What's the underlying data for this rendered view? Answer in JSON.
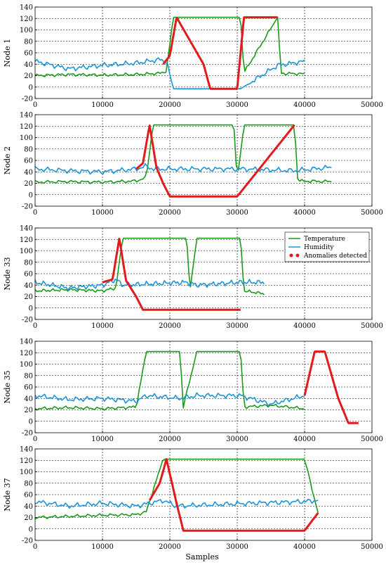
{
  "figure": {
    "xlabel": "Samples"
  },
  "colors": {
    "temperature": "#1a9a1a",
    "humidity": "#1a95d8",
    "anomaly": "#e31a1c"
  },
  "legend": [
    {
      "label": "Temperature",
      "kind": "line",
      "color": "#1a9a1a"
    },
    {
      "label": "Humidity",
      "kind": "line",
      "color": "#1a95d8"
    },
    {
      "label": "Anomalies detected",
      "kind": "dots",
      "color": "#e31a1c"
    }
  ],
  "chart_data": [
    {
      "type": "line",
      "ylabel": "Node 1",
      "xlim": [
        0,
        50000
      ],
      "ylim": [
        -20,
        140
      ],
      "xticks": [
        0,
        10000,
        20000,
        30000,
        40000,
        50000
      ],
      "yticks": [
        -20,
        0,
        20,
        40,
        60,
        80,
        100,
        120,
        140
      ],
      "grid": true,
      "series": [
        {
          "name": "Temperature",
          "x": [
            0,
            5000,
            10000,
            15000,
            18500,
            19500,
            20500,
            30500,
            31000,
            36000,
            36500,
            40000
          ],
          "y": [
            20,
            22,
            21,
            22,
            24,
            28,
            122,
            122,
            25,
            122,
            24,
            23
          ]
        },
        {
          "name": "Humidity",
          "x": [
            0,
            5000,
            10000,
            15000,
            18500,
            19500,
            20500,
            30500,
            36000,
            40000
          ],
          "y": [
            45,
            32,
            38,
            42,
            48,
            45,
            -3,
            -3,
            38,
            45
          ]
        },
        {
          "name": "Anomalies detected",
          "x": [
            19000,
            20000,
            21000,
            25000,
            26000,
            30000,
            31000,
            36000
          ],
          "y": [
            40,
            55,
            122,
            40,
            -3,
            -3,
            122,
            122
          ]
        }
      ]
    },
    {
      "type": "line",
      "ylabel": "Node 2",
      "xlim": [
        0,
        50000
      ],
      "ylim": [
        -20,
        140
      ],
      "xticks": [
        0,
        10000,
        20000,
        30000,
        40000,
        50000
      ],
      "yticks": [
        -20,
        0,
        20,
        40,
        60,
        80,
        100,
        120,
        140
      ],
      "grid": true,
      "series": [
        {
          "name": "Temperature",
          "x": [
            0,
            5000,
            10000,
            15000,
            16500,
            17500,
            29500,
            30000,
            31000,
            38500,
            39000,
            44000
          ],
          "y": [
            22,
            23,
            22,
            24,
            30,
            122,
            122,
            25,
            122,
            122,
            24,
            23
          ]
        },
        {
          "name": "Humidity",
          "x": [
            0,
            5000,
            10000,
            15000,
            16500,
            17500,
            29500,
            31000,
            38500,
            44000
          ],
          "y": [
            45,
            42,
            40,
            45,
            50,
            45,
            45,
            45,
            42,
            48
          ]
        },
        {
          "name": "Anomalies detected",
          "x": [
            15000,
            16000,
            17000,
            18000,
            19000,
            20000,
            30000,
            38500
          ],
          "y": [
            45,
            55,
            122,
            48,
            20,
            -3,
            -3,
            122
          ]
        }
      ]
    },
    {
      "type": "line",
      "ylabel": "Node 33",
      "xlim": [
        0,
        50000
      ],
      "ylim": [
        -20,
        140
      ],
      "xticks": [
        0,
        10000,
        20000,
        30000,
        40000,
        50000
      ],
      "yticks": [
        -20,
        0,
        20,
        40,
        60,
        80,
        100,
        120,
        140
      ],
      "grid": true,
      "series": [
        {
          "name": "Temperature",
          "x": [
            0,
            5000,
            10000,
            12000,
            13000,
            22500,
            23000,
            24000,
            30500,
            31000,
            34000
          ],
          "y": [
            30,
            32,
            30,
            35,
            122,
            122,
            30,
            122,
            122,
            30,
            25
          ]
        },
        {
          "name": "Humidity",
          "x": [
            0,
            5000,
            10000,
            12000,
            13000,
            22500,
            24000,
            30500,
            34000
          ],
          "y": [
            45,
            35,
            40,
            50,
            40,
            45,
            40,
            45,
            45
          ]
        },
        {
          "name": "Anomalies detected",
          "x": [
            10000,
            11500,
            12500,
            13500,
            15000,
            16000,
            30500
          ],
          "y": [
            45,
            50,
            122,
            48,
            20,
            -3,
            -3
          ]
        }
      ]
    },
    {
      "type": "line",
      "ylabel": "Node 35",
      "xlim": [
        0,
        50000
      ],
      "ylim": [
        -20,
        140
      ],
      "xticks": [
        0,
        10000,
        20000,
        30000,
        40000,
        50000
      ],
      "yticks": [
        -20,
        0,
        20,
        40,
        60,
        80,
        100,
        120,
        140
      ],
      "grid": true,
      "series": [
        {
          "name": "Temperature",
          "x": [
            0,
            5000,
            10000,
            15000,
            16500,
            21500,
            22000,
            24000,
            30500,
            31000,
            35000,
            40000
          ],
          "y": [
            22,
            24,
            22,
            25,
            122,
            122,
            25,
            122,
            122,
            25,
            28,
            22
          ]
        },
        {
          "name": "Humidity",
          "x": [
            0,
            5000,
            10000,
            15000,
            16500,
            21500,
            24000,
            30500,
            35000,
            40000
          ],
          "y": [
            45,
            38,
            40,
            35,
            45,
            40,
            45,
            45,
            30,
            45
          ]
        },
        {
          "name": "Anomalies detected",
          "x": [
            40000,
            41500,
            43000,
            45000,
            46500,
            48000
          ],
          "y": [
            45,
            122,
            122,
            40,
            -3,
            -3
          ]
        }
      ]
    },
    {
      "type": "line",
      "ylabel": "Node 37",
      "xlim": [
        0,
        50000
      ],
      "ylim": [
        -20,
        140
      ],
      "xticks": [
        0,
        10000,
        20000,
        30000,
        40000,
        50000
      ],
      "yticks": [
        -20,
        0,
        20,
        40,
        60,
        80,
        100,
        120,
        140
      ],
      "grid": true,
      "series": [
        {
          "name": "Temperature",
          "x": [
            0,
            5000,
            10000,
            15000,
            16500,
            19000,
            21000,
            32000,
            33000,
            40000,
            42000
          ],
          "y": [
            20,
            22,
            24,
            25,
            30,
            122,
            122,
            122,
            122,
            122,
            28
          ]
        },
        {
          "name": "Humidity",
          "x": [
            0,
            5000,
            10000,
            15000,
            19000,
            21000,
            32000,
            40000,
            42000
          ],
          "y": [
            48,
            40,
            45,
            40,
            50,
            40,
            45,
            48,
            50
          ]
        },
        {
          "name": "Anomalies detected",
          "x": [
            17000,
            18500,
            19500,
            21000,
            22000,
            40000,
            42000
          ],
          "y": [
            50,
            80,
            122,
            45,
            -3,
            -3,
            28
          ]
        }
      ]
    }
  ]
}
